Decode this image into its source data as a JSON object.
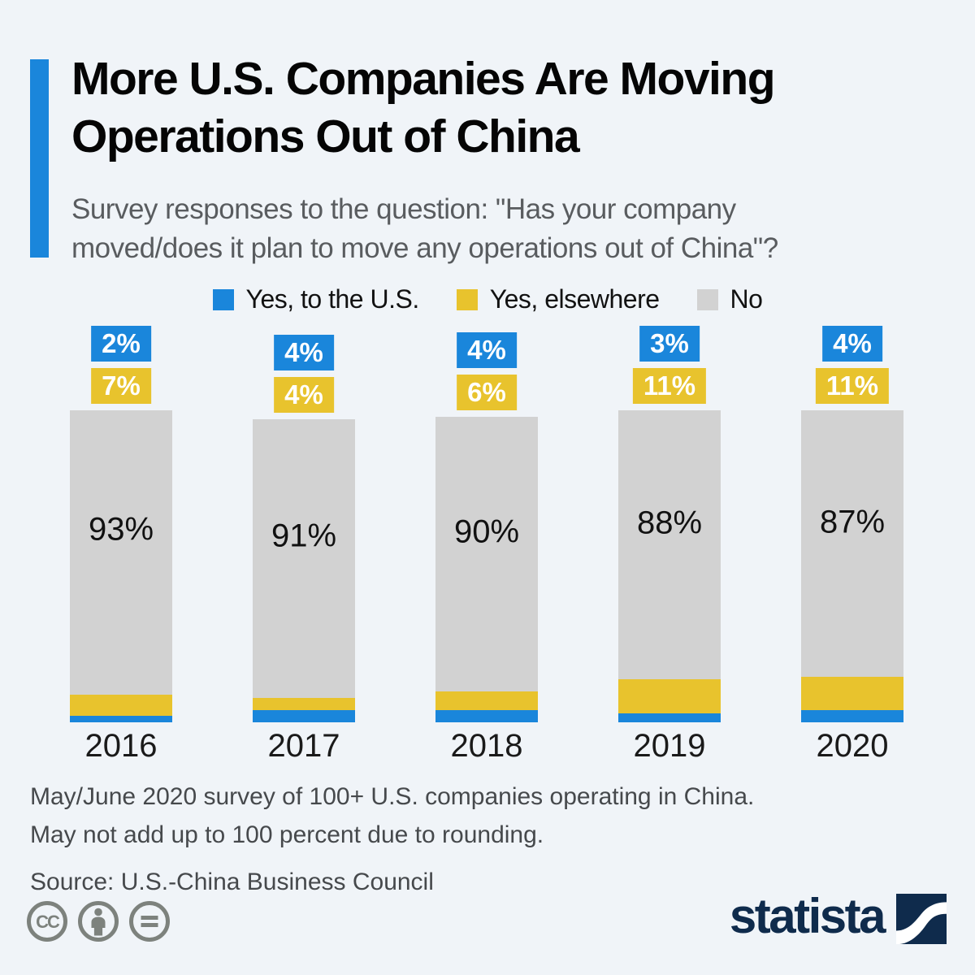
{
  "page": {
    "title": "More U.S. Companies Are Moving\nOperations Out of China",
    "subtitle": "Survey responses to the question: \"Has your company\nmoved/does it plan to move any operations out of China\"?",
    "footnote": "May/June 2020 survey of 100+ U.S. companies operating in China.\nMay not add up to 100 percent due to rounding.",
    "source": "Source: U.S.-China Business Council",
    "brand": "statista"
  },
  "colors": {
    "background": "#f0f4f8",
    "accent_blue": "#1a86db",
    "series_blue": "#1a86db",
    "series_yellow": "#e8c32d",
    "series_gray": "#d2d2d2",
    "brand_navy": "#0f2b4c",
    "license_icon_gray": "#7d827d"
  },
  "legend": [
    {
      "label": "Yes, to the U.S.",
      "color": "#1a86db"
    },
    {
      "label": "Yes, elsewhere",
      "color": "#e8c32d"
    },
    {
      "label": "No",
      "color": "#d2d2d2"
    }
  ],
  "chart_data": {
    "type": "bar",
    "stacked": true,
    "unit": "%",
    "categories": [
      "2016",
      "2017",
      "2018",
      "2019",
      "2020"
    ],
    "series": [
      {
        "name": "Yes, to the U.S.",
        "color": "#1a86db",
        "values": [
          2,
          4,
          4,
          3,
          4
        ]
      },
      {
        "name": "Yes, elsewhere",
        "color": "#e8c32d",
        "values": [
          7,
          4,
          6,
          11,
          11
        ]
      },
      {
        "name": "No",
        "color": "#d2d2d2",
        "values": [
          93,
          91,
          90,
          88,
          87
        ]
      }
    ],
    "legend_position": "top",
    "grid": false,
    "axes_shown": false,
    "value_label_style": "blue and yellow values in colored chips above each bar; gray value printed inside bar"
  },
  "license_icons": [
    "cc-icon",
    "attribution-person-icon",
    "no-derivatives-equals-icon"
  ]
}
